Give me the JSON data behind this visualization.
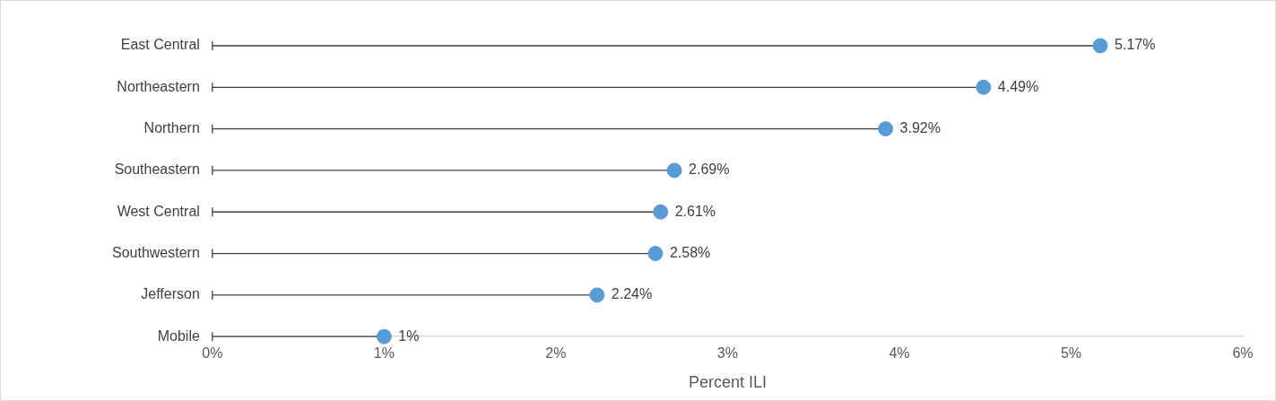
{
  "chart_data": {
    "type": "lollipop",
    "orientation": "horizontal",
    "xlabel": "Percent ILI",
    "categories": [
      "East Central",
      "Northeastern",
      "Northern",
      "Southeastern",
      "West Central",
      "Southwestern",
      "Jefferson",
      "Mobile"
    ],
    "values": [
      5.17,
      4.49,
      3.92,
      2.69,
      2.61,
      2.58,
      2.24,
      1
    ],
    "value_labels": [
      "5.17%",
      "4.49%",
      "3.92%",
      "2.69%",
      "2.61%",
      "2.58%",
      "2.24%",
      "1%"
    ],
    "color": "#5b9bd5",
    "marker": "circle",
    "xlim": [
      0,
      6
    ],
    "xticks": [
      {
        "value": 0,
        "label": "0%"
      },
      {
        "value": 1,
        "label": "1%"
      },
      {
        "value": 2,
        "label": "2%"
      },
      {
        "value": 3,
        "label": "3%"
      },
      {
        "value": 4,
        "label": "4%"
      },
      {
        "value": 5,
        "label": "5%"
      },
      {
        "value": 6,
        "label": "6%"
      }
    ]
  }
}
